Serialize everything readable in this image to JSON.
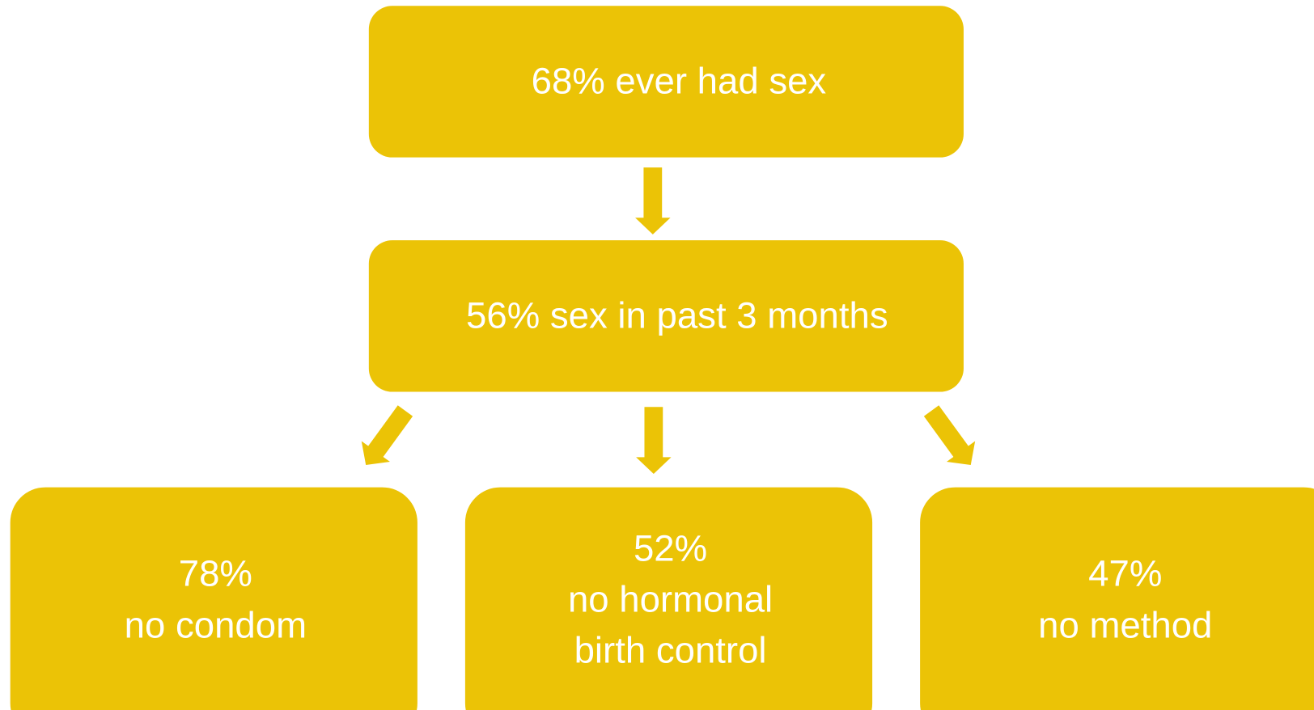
{
  "nodes": [
    {
      "lines": [
        "68% ever had sex"
      ]
    },
    {
      "lines": [
        "56% sex in past 3 months"
      ]
    },
    {
      "lines": [
        "78%",
        "no condom"
      ]
    },
    {
      "lines": [
        "52%",
        "no hormonal",
        "birth control"
      ]
    },
    {
      "lines": [
        "47%",
        "no method"
      ]
    }
  ]
}
